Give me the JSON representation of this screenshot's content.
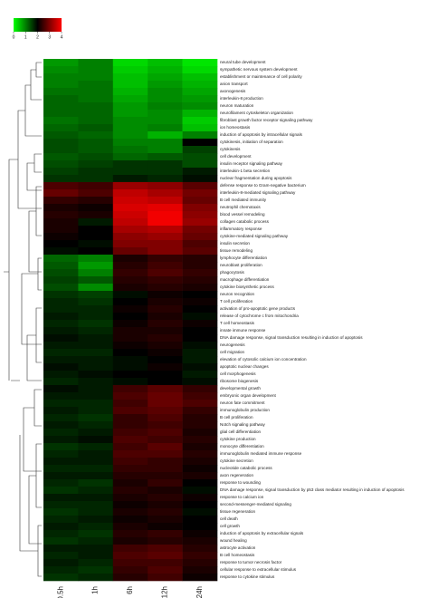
{
  "chart_data": {
    "type": "heatmap",
    "categories": [
      "0.5h",
      "1h",
      "6h",
      "12h",
      "24h"
    ],
    "rows": [
      "neural tube development",
      "sympathetic nervous system development",
      "establishment or maintenance of cell polarity",
      "anion transport",
      "axonogenesis",
      "interleukin-8 production",
      "neuron maturation",
      "neurofilament cytoskeleton organization",
      "fibroblast growth factor receptor signaling pathway",
      "ion homeostasis",
      "induction of apoptosis by intracellular signals",
      "cytokinesis, initiation of separation",
      "cytokinesis",
      "cell development",
      "insulin receptor signaling pathway",
      "interleukin-1 beta secretion",
      "nuclear fragmentation during apoptosis",
      "defense response to Gram-negative bacterium",
      "interleukin-8-mediated signaling pathway",
      "B cell mediated immunity",
      "neutrophil chemotaxis",
      "blood vessel remodeling",
      "collagen catabolic process",
      "inflammatory response",
      "cytokine-mediated signaling pathway",
      "insulin secretion",
      "tissue remodeling",
      "lymphocyte differentiation",
      "neuroblast proliferation",
      "phagocytosis",
      "macrophage differentiation",
      "cytokine biosynthetic process",
      "neuron recognition",
      "T cell proliferation",
      "activation of pro-apoptotic gene products",
      "release of cytochrome c from mitochondria",
      "T cell homeostasis",
      "innate immune response",
      "DNA damage response, signal transduction resulting in induction of apoptosis",
      "neurogenesis",
      "cell migration",
      "elevation of cytosolic calcium ion concentration",
      "apoptotic nuclear changes",
      "cell morphogenesis",
      "ribosome biogenesis",
      "developmental growth",
      "embryonic organ development",
      "neuron fate commitment",
      "immunoglobulin production",
      "B cell proliferation",
      "Notch signaling pathway",
      "glial cell differentiation",
      "cytokine production",
      "monocyte differentiation",
      "immunoglobulin mediated immune response",
      "cytokine secretion",
      "nucleotide catabolic process",
      "axon regeneration",
      "response to wounding",
      "DNA damage response, signal transduction by p53 class mediator resulting in induction of apoptosis",
      "response to calcium ion",
      "second-messenger-mediated signaling",
      "tissue regeneration",
      "cell death",
      "cell growth",
      "induction of apoptosis by extracellular signals",
      "wound healing",
      "astrocyte activation",
      "B cell homeostasis",
      "response to tumor necrosis factor",
      "cellular response to extracellular stimulus",
      "response to cytokine stimulus"
    ],
    "values": [
      [
        0.8,
        1.0,
        0.3,
        0.5,
        0.2
      ],
      [
        0.9,
        1.0,
        0.4,
        0.6,
        0.3
      ],
      [
        1.0,
        1.0,
        0.5,
        0.7,
        0.5
      ],
      [
        1.0,
        1.1,
        0.5,
        0.8,
        0.6
      ],
      [
        1.1,
        1.1,
        0.6,
        0.9,
        0.7
      ],
      [
        1.2,
        1.1,
        0.7,
        0.9,
        0.8
      ],
      [
        1.2,
        1.2,
        0.8,
        1.0,
        0.9
      ],
      [
        1.2,
        1.2,
        0.8,
        0.9,
        0.6
      ],
      [
        1.1,
        1.2,
        0.9,
        0.9,
        0.4
      ],
      [
        1.2,
        1.3,
        0.9,
        1.0,
        0.5
      ],
      [
        1.3,
        1.2,
        0.9,
        0.6,
        1.0
      ],
      [
        1.4,
        1.3,
        1.0,
        1.0,
        2.0
      ],
      [
        1.4,
        1.3,
        1.1,
        1.0,
        1.5
      ],
      [
        1.3,
        1.4,
        1.2,
        1.3,
        1.4
      ],
      [
        1.4,
        1.5,
        1.6,
        1.6,
        1.4
      ],
      [
        1.5,
        1.6,
        1.6,
        1.6,
        1.8
      ],
      [
        1.6,
        1.6,
        1.8,
        1.7,
        1.9
      ],
      [
        2.6,
        2.5,
        3.2,
        3.1,
        2.7
      ],
      [
        2.8,
        2.6,
        3.5,
        3.3,
        2.9
      ],
      [
        2.4,
        2.3,
        3.6,
        3.5,
        2.8
      ],
      [
        2.2,
        2.1,
        3.7,
        3.8,
        3.0
      ],
      [
        2.3,
        2.2,
        3.6,
        3.9,
        3.1
      ],
      [
        2.2,
        1.8,
        3.5,
        3.9,
        3.2
      ],
      [
        2.2,
        2.0,
        3.3,
        3.4,
        2.9
      ],
      [
        2.1,
        2.0,
        3.1,
        3.2,
        2.8
      ],
      [
        2.0,
        1.9,
        3.0,
        3.0,
        2.6
      ],
      [
        1.9,
        2.0,
        2.8,
        3.0,
        2.7
      ],
      [
        1.2,
        1.0,
        2.2,
        2.4,
        2.3
      ],
      [
        1.3,
        0.8,
        2.3,
        2.5,
        2.3
      ],
      [
        1.4,
        1.0,
        2.4,
        2.6,
        2.4
      ],
      [
        1.5,
        1.3,
        2.3,
        2.4,
        2.3
      ],
      [
        1.4,
        0.9,
        2.2,
        2.3,
        2.2
      ],
      [
        1.6,
        1.5,
        1.9,
        2.1,
        2.0
      ],
      [
        1.7,
        1.6,
        2.0,
        2.2,
        2.1
      ],
      [
        1.7,
        1.7,
        2.1,
        2.3,
        2.0
      ],
      [
        1.8,
        1.7,
        2.0,
        2.2,
        1.9
      ],
      [
        1.7,
        1.6,
        2.1,
        2.3,
        2.1
      ],
      [
        1.8,
        1.7,
        2.2,
        2.2,
        2.0
      ],
      [
        1.9,
        1.8,
        2.2,
        2.3,
        2.0
      ],
      [
        1.8,
        1.8,
        2.1,
        2.2,
        1.9
      ],
      [
        1.7,
        1.7,
        2.0,
        2.1,
        1.8
      ],
      [
        1.8,
        1.8,
        1.9,
        2.0,
        1.8
      ],
      [
        1.9,
        1.8,
        1.9,
        2.1,
        1.9
      ],
      [
        1.8,
        1.9,
        2.0,
        2.0,
        1.8
      ],
      [
        1.7,
        1.8,
        1.9,
        2.0,
        1.9
      ],
      [
        1.9,
        1.8,
        2.5,
        2.7,
        2.4
      ],
      [
        1.8,
        1.8,
        2.6,
        2.8,
        2.5
      ],
      [
        1.7,
        1.7,
        2.5,
        2.8,
        2.6
      ],
      [
        1.8,
        1.7,
        2.6,
        2.7,
        2.4
      ],
      [
        1.7,
        1.6,
        2.4,
        2.6,
        2.3
      ],
      [
        1.8,
        1.7,
        2.4,
        2.5,
        2.3
      ],
      [
        1.7,
        1.8,
        2.5,
        2.6,
        2.2
      ],
      [
        1.8,
        1.9,
        2.6,
        2.5,
        2.3
      ],
      [
        1.6,
        1.7,
        2.5,
        2.7,
        2.2
      ],
      [
        1.7,
        1.8,
        2.6,
        2.6,
        2.3
      ],
      [
        1.8,
        1.8,
        2.5,
        2.4,
        2.2
      ],
      [
        1.7,
        1.7,
        2.4,
        2.4,
        2.1
      ],
      [
        1.8,
        1.8,
        2.3,
        2.3,
        2.2
      ],
      [
        1.7,
        1.6,
        2.2,
        2.4,
        2.0
      ],
      [
        1.6,
        1.7,
        2.3,
        2.2,
        1.9
      ],
      [
        1.8,
        1.8,
        2.2,
        2.3,
        2.1
      ],
      [
        1.7,
        1.7,
        2.1,
        2.2,
        2.0
      ],
      [
        1.6,
        1.7,
        2.2,
        2.3,
        1.9
      ],
      [
        1.7,
        1.8,
        2.1,
        2.2,
        2.0
      ],
      [
        1.8,
        1.7,
        2.2,
        2.1,
        2.0
      ],
      [
        1.7,
        1.6,
        2.3,
        2.4,
        2.1
      ],
      [
        1.6,
        1.7,
        2.2,
        2.3,
        2.2
      ],
      [
        1.8,
        1.8,
        2.5,
        2.6,
        2.3
      ],
      [
        1.7,
        1.8,
        2.6,
        2.7,
        2.4
      ],
      [
        1.8,
        1.7,
        2.5,
        2.5,
        2.3
      ],
      [
        1.7,
        1.6,
        2.4,
        2.6,
        2.2
      ],
      [
        1.6,
        1.7,
        2.3,
        2.5,
        2.1
      ]
    ],
    "colors": [
      "#00ff00",
      "#000000",
      "#ff0000"
    ],
    "clim": [
      0,
      4
    ],
    "colorbar_ticks": [
      0,
      1,
      2,
      3,
      4
    ]
  }
}
